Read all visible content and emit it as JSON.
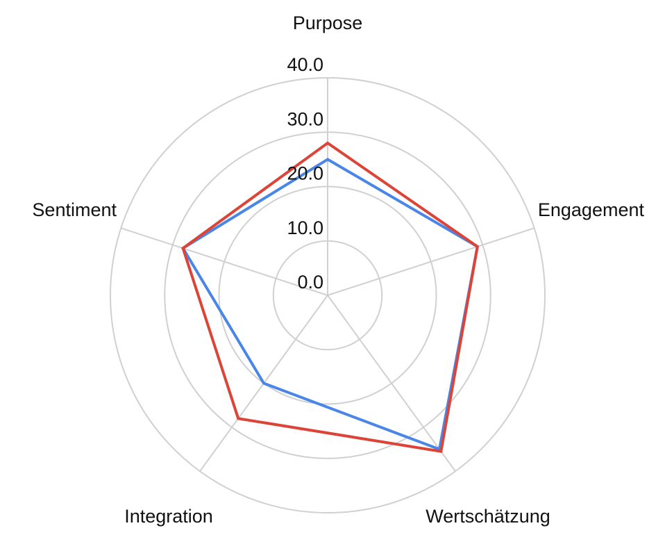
{
  "chart_data": {
    "type": "radar",
    "axes": [
      "Purpose",
      "Engagement",
      "Wertschätzung",
      "Integration",
      "Sentiment"
    ],
    "rlim": [
      0,
      40
    ],
    "ticks": [
      "0.0",
      "10.0",
      "20.0",
      "30.0",
      "40.0"
    ],
    "tick_values": [
      0,
      10,
      20,
      30,
      40
    ],
    "grid": true,
    "legend": "none",
    "series": [
      {
        "color": "#4a86e8",
        "values": [
          25,
          29,
          35,
          20,
          28
        ]
      },
      {
        "color": "#db4437",
        "values": [
          28,
          29,
          35.5,
          28,
          28
        ]
      }
    ]
  }
}
